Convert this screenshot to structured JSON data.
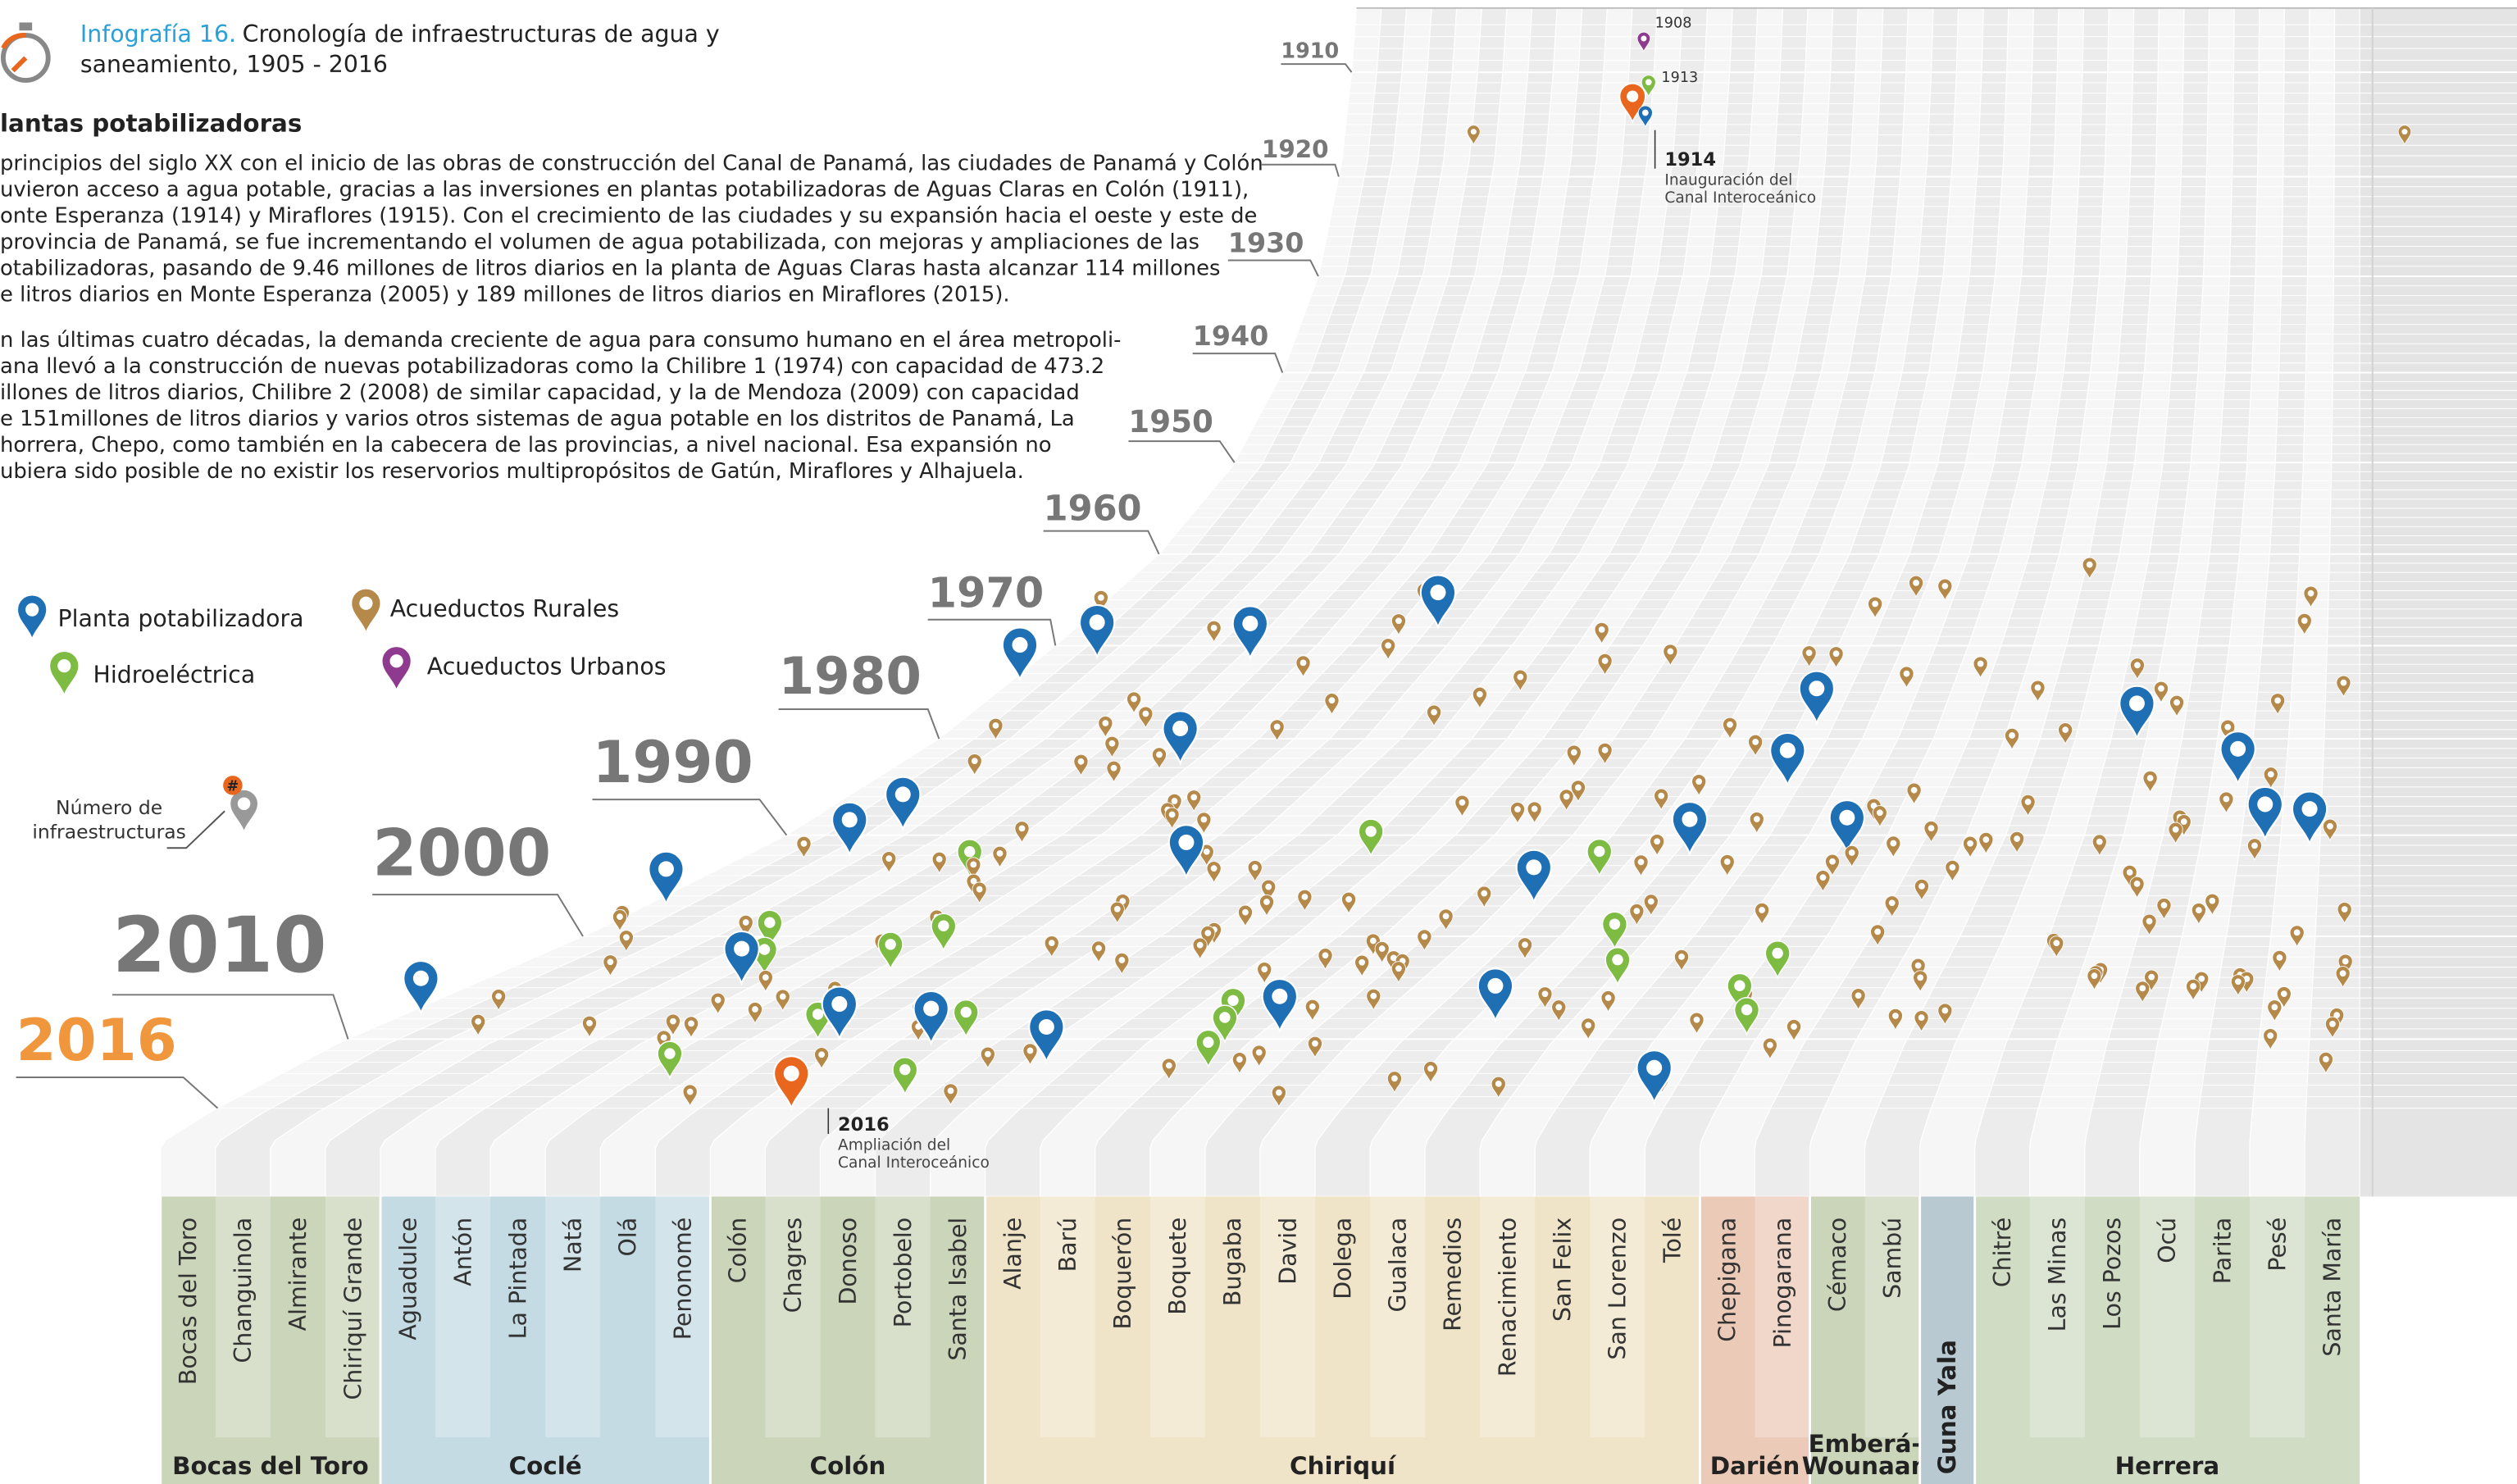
{
  "header": {
    "label": "Infografía 16.",
    "title": "Cronología de infraestructuras de agua y",
    "title_line2": "saneamiento, 1905 - 2016"
  },
  "section_title": "lantas potabilizadoras",
  "paragraphs": [
    [
      "principios del siglo XX con el inicio de las obras de construcción del Canal de Panamá, las ciudades de Panamá y Colón",
      "uvieron acceso a agua potable, gracias a las inversiones en plantas potabilizadoras de Aguas Claras en Colón (1911),",
      "onte Esperanza (1914) y Miraflores (1915). Con el crecimiento de las ciudades y su expansión hacia el oeste y este de",
      "provincia de Panamá, se fue incrementando el volumen de agua potabilizada, con mejoras y ampliaciones de las",
      "otabilizadoras, pasando de 9.46 millones de litros diarios en la planta de Aguas Claras hasta alcanzar 114 millones",
      "e litros diarios en Monte Esperanza (2005) y 189 millones de litros diarios en Miraflores (2015)."
    ],
    [
      "n las últimas cuatro décadas, la demanda creciente de agua para consumo humano en el área metropoli-",
      "ana llevó a la construcción de nuevas potabilizadoras como la Chilibre 1 (1974) con capacidad de 473.2",
      "illones de litros diarios, Chilibre 2 (2008) de similar capacidad, y la de Mendoza (2009) con capacidad",
      "e 151millones de litros diarios y varios otros sistemas de agua potable en los distritos de Panamá, La",
      "horrera, Chepo, como también en la cabecera de las provincias, a nivel nacional. Esa expansión no",
      "ubiera sido posible de no existir los reservorios multipropósitos de Gatún, Miraflores y Alhajuela."
    ]
  ],
  "legend": [
    {
      "name": "Planta potabilizadora",
      "color": "#1f6fb5"
    },
    {
      "name": "Hidroeléctrica",
      "color": "#7dbb42"
    },
    {
      "name": "Acueductos Rurales",
      "color": "#b5894a"
    },
    {
      "name": "Acueductos Urbanos",
      "color": "#8e3a8e"
    }
  ],
  "legend_note": {
    "symbol": "#",
    "lines": [
      "Número de",
      "infraestructuras"
    ]
  },
  "decades": [
    1910,
    1920,
    1930,
    1940,
    1950,
    1960,
    1970,
    1980,
    1990,
    2000,
    2010,
    2016
  ],
  "small_years": [
    1908,
    1913
  ],
  "annotations": [
    {
      "year": 1914,
      "lines": [
        "Inauguración del",
        "Canal Interoceánico"
      ]
    },
    {
      "year": 2016,
      "lines": [
        "Ampliación del",
        "Canal Interoceánico"
      ]
    }
  ],
  "provinces": [
    {
      "name": "Bocas del Toro",
      "color": "#cbd5ba",
      "districts": [
        "Bocas del Toro",
        "Changuinola",
        "Almirante",
        "Chiriquí Grande"
      ]
    },
    {
      "name": "Coclé",
      "color": "#c4dbe4",
      "districts": [
        "Aguadulce",
        "Antón",
        "La Pintada",
        "Natá",
        "Olá",
        "Penonomé"
      ]
    },
    {
      "name": "Colón",
      "color": "#cbd5ba",
      "districts": [
        "Colón",
        "Chagres",
        "Donoso",
        "Portobelo",
        "Santa Isabel"
      ]
    },
    {
      "name": "Chiriquí",
      "color": "#f0e4c8",
      "districts": [
        "Alanje",
        "Barú",
        "Boquerón",
        "Boquete",
        "Bugaba",
        "David",
        "Dolega",
        "Gualaca",
        "Remedios",
        "Renacimiento",
        "San Felix",
        "San Lorenzo",
        "Tolé"
      ]
    },
    {
      "name": "Darién",
      "color": "#eccab8",
      "districts": [
        "Chepigana",
        "Pinogarana"
      ]
    },
    {
      "name_lines": [
        "Emberá-",
        "Wounaan"
      ],
      "color": "#cbd5ba",
      "districts": [
        "Cémaco",
        "Sambú"
      ]
    },
    {
      "name": "Guna Yala",
      "color": "#b8c9d2",
      "districts": []
    },
    {
      "name": "Herrera",
      "color": "#d0ddc4",
      "districts": [
        "Chitré",
        "Las Minas",
        "Los Pozos",
        "Ocú",
        "Parita",
        "Pesé",
        "Santa María"
      ]
    }
  ]
}
